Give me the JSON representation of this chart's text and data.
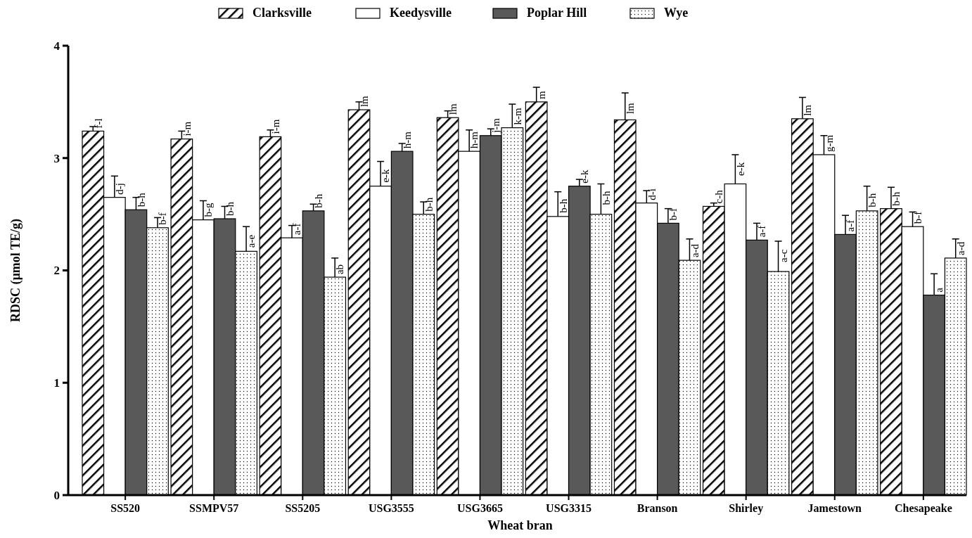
{
  "chart_data": {
    "type": "bar",
    "xlabel": "Wheat bran",
    "ylabel": "RDSC (µmol TE/g)",
    "categories": [
      "SS520",
      "SSMPV57",
      "SS5205",
      "USG3555",
      "USG3665",
      "USG3315",
      "Branson",
      "Shirley",
      "Jamestown",
      "Chesapeake"
    ],
    "ylim": [
      0,
      4
    ],
    "yticks": [
      0,
      1,
      2,
      3,
      4
    ],
    "legend": "top",
    "series": [
      {
        "name": "Clarksville",
        "color": "#000000",
        "values": [
          3.24,
          3.17,
          3.19,
          3.43,
          3.36,
          3.5,
          3.34,
          2.57,
          3.35,
          2.55
        ],
        "errors": [
          0.04,
          0.07,
          0.06,
          0.07,
          0.06,
          0.13,
          0.24,
          0.03,
          0.19,
          0.19
        ],
        "value_labels": [
          "f-l",
          "i-m",
          "i-m",
          "lm",
          "lm",
          "m",
          "lm",
          "c-h",
          "lm",
          "b-h"
        ]
      },
      {
        "name": "Keedysville",
        "color": "#ffffff",
        "values": [
          2.65,
          2.45,
          2.29,
          2.75,
          3.06,
          2.48,
          2.6,
          2.77,
          3.03,
          2.39
        ],
        "errors": [
          0.19,
          0.17,
          0.11,
          0.22,
          0.19,
          0.22,
          0.11,
          0.26,
          0.17,
          0.13
        ],
        "value_labels": [
          "d-j",
          "b-g",
          "a-f",
          "e-k",
          "h-m",
          "b-h",
          "d-i",
          "e-k",
          "g-m",
          "b-f"
        ]
      },
      {
        "name": "Poplar Hill",
        "color": "#595959",
        "values": [
          2.54,
          2.46,
          2.53,
          3.06,
          3.2,
          2.75,
          2.42,
          2.27,
          2.32,
          1.78
        ],
        "errors": [
          0.11,
          0.11,
          0.06,
          0.07,
          0.06,
          0.06,
          0.13,
          0.15,
          0.17,
          0.19
        ],
        "value_labels": [
          "b-h",
          "b-h",
          "b-h",
          "h-m",
          "j-m",
          "e-k",
          "b-f",
          "a-f",
          "a-f",
          "a"
        ]
      },
      {
        "name": "Wye",
        "color": "#000000",
        "values": [
          2.38,
          2.17,
          1.94,
          2.5,
          3.27,
          2.5,
          2.09,
          1.99,
          2.53,
          2.11
        ],
        "errors": [
          0.09,
          0.22,
          0.17,
          0.11,
          0.21,
          0.27,
          0.19,
          0.27,
          0.22,
          0.17
        ],
        "value_labels": [
          "b-f",
          "a-e",
          "ab",
          "b-h",
          "k-m",
          "b-h",
          "a-d",
          "a-c",
          "b-h",
          "a-d"
        ]
      }
    ]
  }
}
